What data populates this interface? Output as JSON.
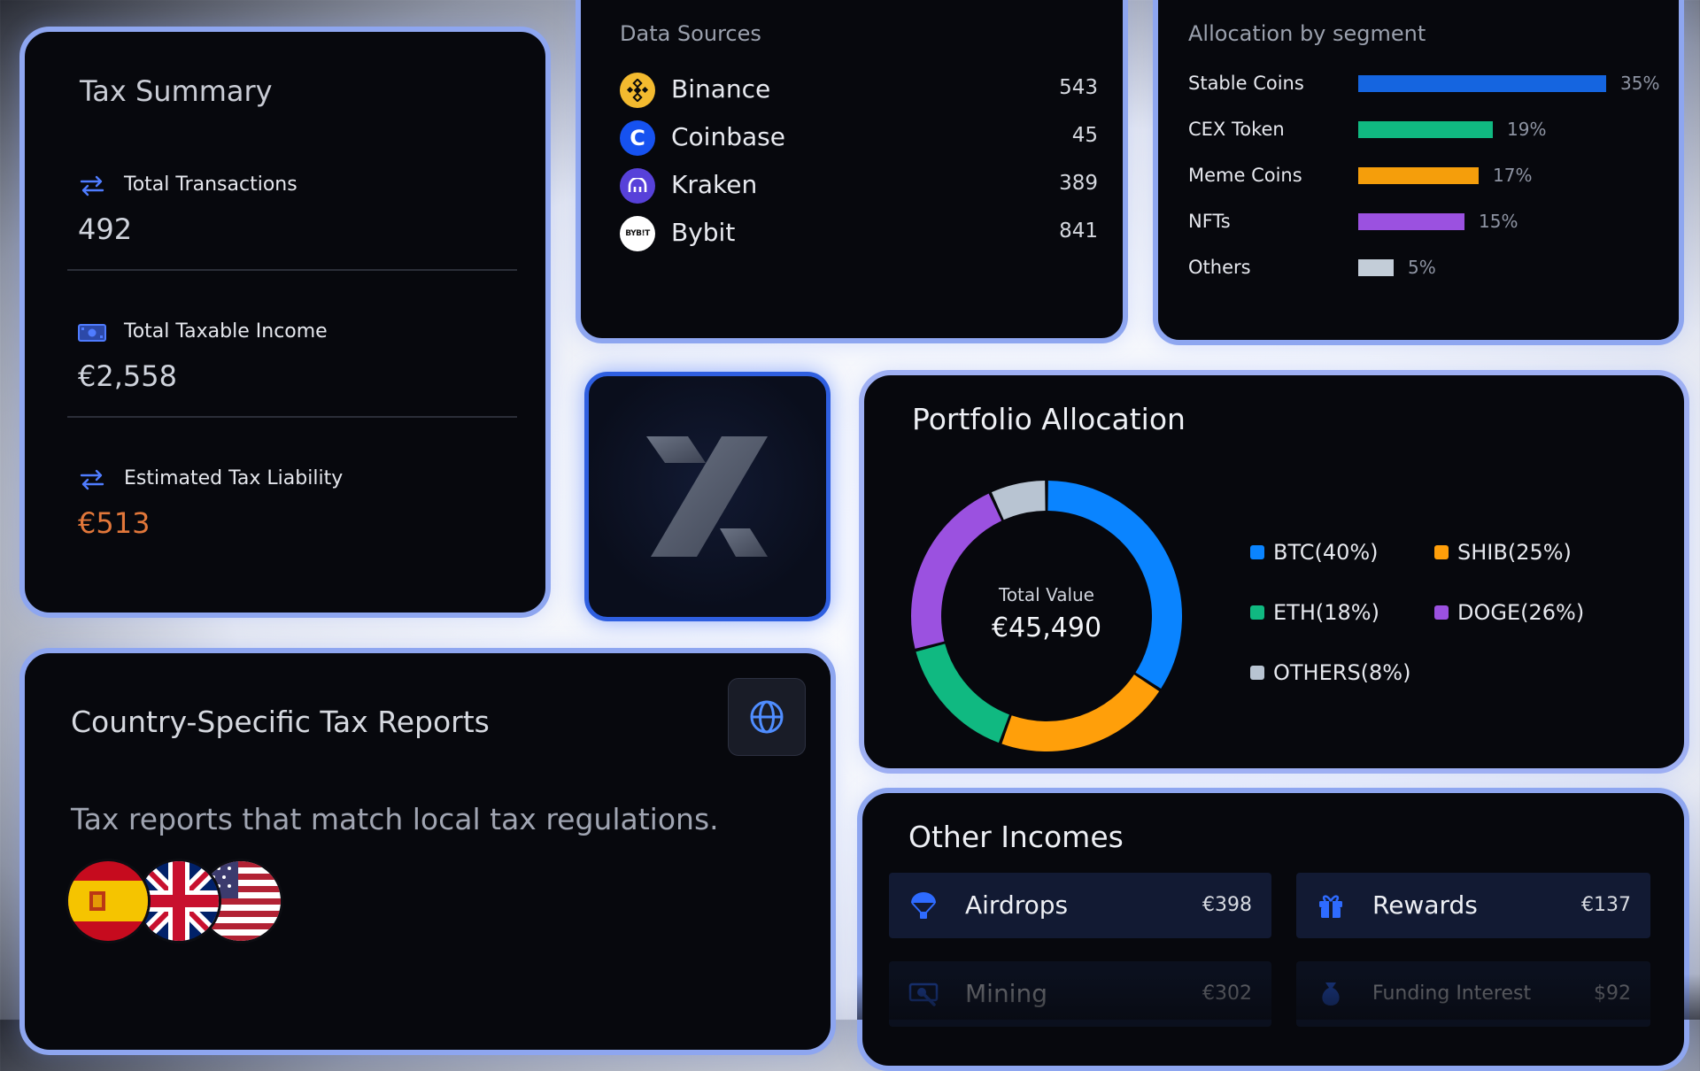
{
  "tax_summary": {
    "title": "Tax Summary",
    "items": [
      {
        "label": "Total Transactions",
        "value": "492",
        "icon": "arrows-swap-icon"
      },
      {
        "label": "Total Taxable Income",
        "value": "€2,558",
        "icon": "cash-icon"
      },
      {
        "label": "Estimated Tax Liability",
        "value": "€513",
        "icon": "arrows-swap-icon"
      }
    ]
  },
  "data_sources": {
    "title": "Data Sources",
    "items": [
      {
        "name": "Binance",
        "count": "543",
        "color": "#F3BA2F"
      },
      {
        "name": "Coinbase",
        "count": "45",
        "color": "#1652F0"
      },
      {
        "name": "Kraken",
        "count": "389",
        "color": "#5741D9"
      },
      {
        "name": "Bybit",
        "count": "841",
        "color": "#FFFFFF",
        "logo_text": "BYB!T"
      }
    ]
  },
  "segments": {
    "title": "Allocation by segment",
    "items": [
      {
        "label": "Stable Coins",
        "pct": "35%",
        "value": 35,
        "color": "#1565E0"
      },
      {
        "label": "CEX Token",
        "pct": "19%",
        "value": 19,
        "color": "#10B981"
      },
      {
        "label": "Meme Coins",
        "pct": "17%",
        "value": 17,
        "color": "#F59E0B"
      },
      {
        "label": "NFTs",
        "pct": "15%",
        "value": 15,
        "color": "#9B51E0"
      },
      {
        "label": "Others",
        "pct": "5%",
        "value": 5,
        "color": "#C3CDD8"
      }
    ]
  },
  "portfolio": {
    "title": "Portfolio Allocation",
    "center_label": "Total Value",
    "center_value": "€45,490",
    "legend": [
      "BTC(40%)",
      "SHIB(25%)",
      "ETH(18%)",
      "DOGE(26%)",
      "OTHERS(8%)"
    ]
  },
  "chart_data": {
    "type": "pie",
    "title": "Portfolio Allocation",
    "categories": [
      "BTC",
      "SHIB",
      "ETH",
      "DOGE",
      "OTHERS"
    ],
    "values": [
      40,
      25,
      18,
      26,
      8
    ],
    "colors": [
      "#0A84FF",
      "#FF9F0A",
      "#10B981",
      "#9B51E0",
      "#B8C4D2"
    ],
    "legend": "right"
  },
  "country": {
    "title": "Country-Specific Tax Reports",
    "description": "Tax reports that match local tax regulations.",
    "flags": [
      "spain-flag-icon",
      "uk-flag-icon",
      "usa-flag-icon"
    ]
  },
  "incomes": {
    "title": "Other Incomes",
    "items": [
      {
        "name": "Airdrops",
        "amount": "€398",
        "icon": "parachute-icon"
      },
      {
        "name": "Rewards",
        "amount": "€137",
        "icon": "gift-icon"
      },
      {
        "name": "Mining",
        "amount": "€302",
        "icon": "pickaxe-icon"
      },
      {
        "name": "Funding Interest",
        "amount": "$92",
        "icon": "money-bag-icon"
      }
    ]
  }
}
